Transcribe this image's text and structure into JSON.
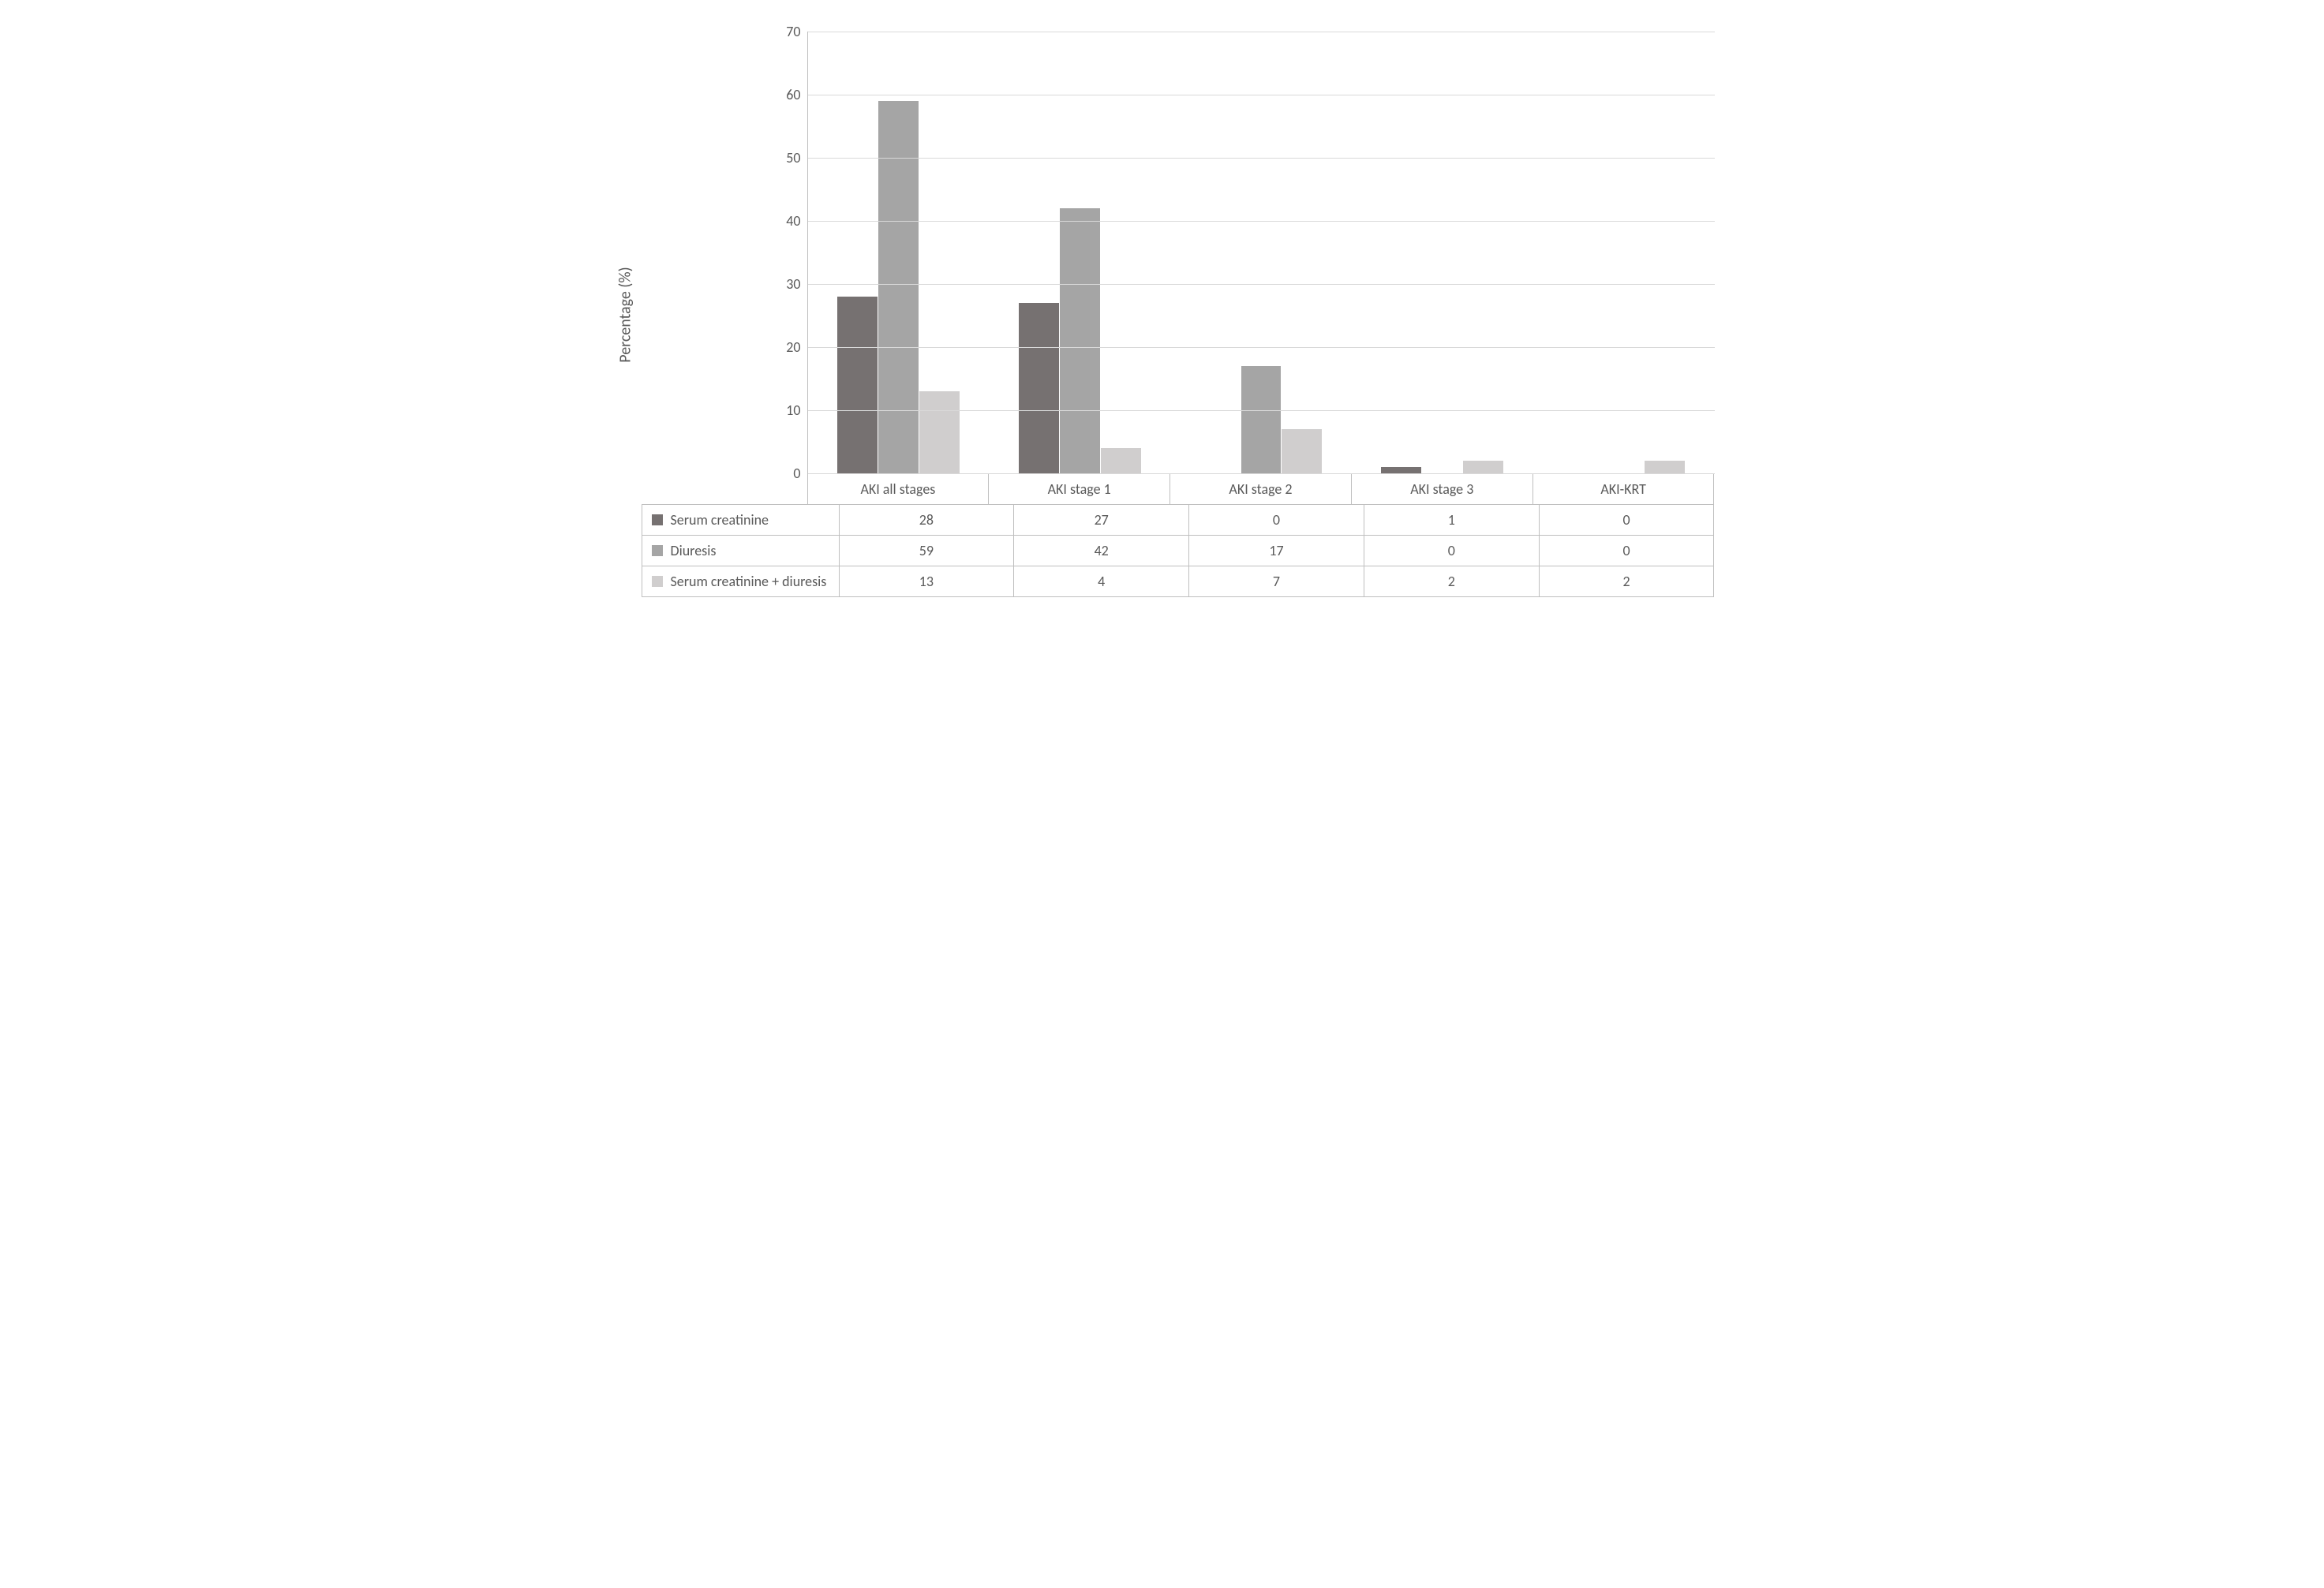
{
  "chart": {
    "type": "bar",
    "ylabel": "Percentage (%)",
    "ylim": [
      0,
      70
    ],
    "ytick_step": 10,
    "yticks": [
      0,
      10,
      20,
      30,
      40,
      50,
      60,
      70
    ],
    "categories": [
      "AKI all stages",
      "AKI stage 1",
      "AKI stage 2",
      "AKI stage 3",
      "AKI-KRT"
    ],
    "series": [
      {
        "name": "Serum creatinine",
        "color": "#767171",
        "values": [
          28,
          27,
          0,
          1,
          0
        ]
      },
      {
        "name": "Diuresis",
        "color": "#a5a5a5",
        "values": [
          59,
          42,
          17,
          0,
          0
        ]
      },
      {
        "name": "Serum creatinine + diuresis",
        "color": "#d0cece",
        "values": [
          13,
          4,
          7,
          2,
          2
        ]
      }
    ],
    "background_color": "#ffffff",
    "grid_color": "#d9d9d9",
    "axis_color": "#bfbfbf",
    "text_color": "#595959",
    "label_fontsize": 20,
    "tick_fontsize": 18,
    "bar_group_gap_ratio": 0.28,
    "bar_width_ratio": 0.28
  }
}
